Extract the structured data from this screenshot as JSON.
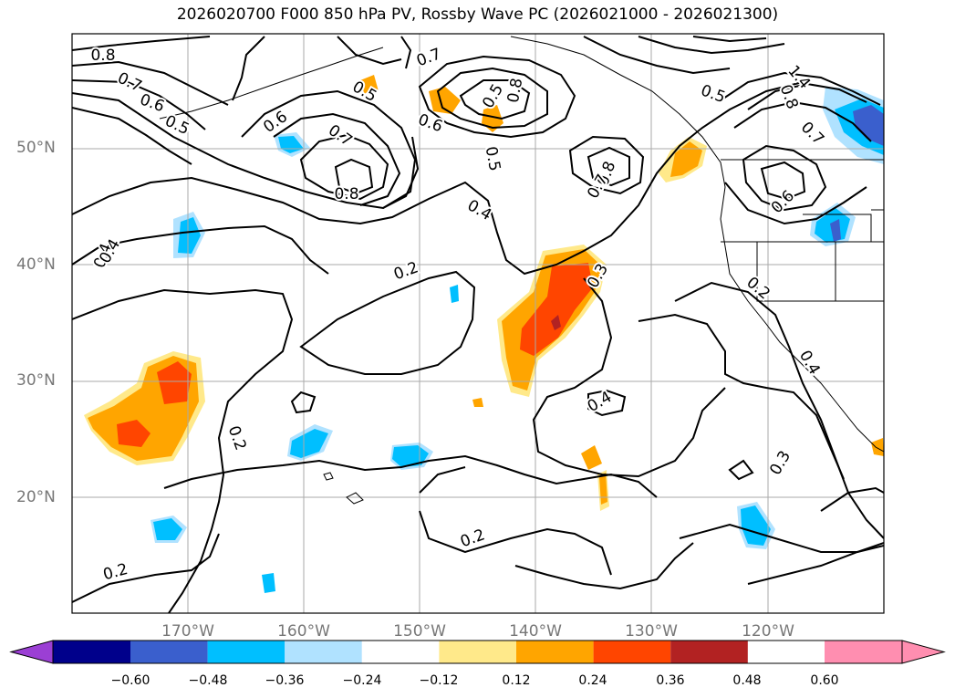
{
  "title": "2026020700 F000 850 hPa PV, Rossby Wave PC (2026021000 - 2026021300)",
  "lat_labels": [
    "50°N",
    "40°N",
    "30°N",
    "20°N"
  ],
  "lon_labels": [
    "170°W",
    "160°W",
    "150°W",
    "140°W",
    "130°W",
    "120°W"
  ],
  "colorbar": {
    "ticks": [
      "−0.60",
      "−0.48",
      "−0.36",
      "−0.24",
      "−0.12",
      "0.12",
      "0.24",
      "0.36",
      "0.48",
      "0.60"
    ],
    "colors": [
      "#9b3fd4",
      "#00008b",
      "#3a5fcd",
      "#00bfff",
      "#b0e2ff",
      "#ffffff",
      "#ffe98a",
      "#ffa500",
      "#ff4500",
      "#b22222",
      "#ff8eb0"
    ]
  },
  "contour_labels": [
    {
      "text": "0.8"
    },
    {
      "text": "0.7"
    },
    {
      "text": "0.6"
    },
    {
      "text": "0.5"
    },
    {
      "text": "0.4"
    },
    {
      "text": "0.5"
    },
    {
      "text": "0.6"
    },
    {
      "text": "0.7"
    },
    {
      "text": "0.8"
    },
    {
      "text": "0.7"
    },
    {
      "text": "0.6"
    },
    {
      "text": "0.8"
    },
    {
      "text": "0.5"
    },
    {
      "text": "0.4"
    },
    {
      "text": "0.2"
    },
    {
      "text": "0.3"
    },
    {
      "text": "0.8"
    },
    {
      "text": "0.7"
    },
    {
      "text": "0.5"
    },
    {
      "text": "1.4"
    },
    {
      "text": "0.8"
    },
    {
      "text": "0.7"
    },
    {
      "text": "0.6"
    },
    {
      "text": "0.2"
    },
    {
      "text": "0.4"
    },
    {
      "text": "0.3"
    },
    {
      "text": "0.4"
    },
    {
      "text": "0.2"
    },
    {
      "text": "0.2"
    },
    {
      "text": "0.5"
    },
    {
      "text": "0.4"
    },
    {
      "text": "0.2"
    }
  ]
}
